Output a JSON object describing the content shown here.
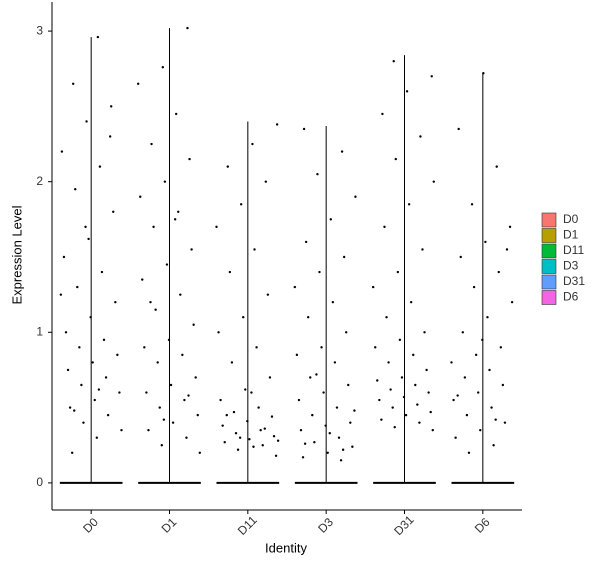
{
  "chart_data": {
    "type": "violin",
    "x_label": "Identity",
    "y_label": "Expression Level",
    "ylim": [
      -0.18,
      3.14
    ],
    "yticks": [
      0,
      1,
      2,
      3
    ],
    "series": [
      {
        "name": "D0",
        "color": "#F8766D",
        "max": 2.96,
        "values": [
          0,
          2.96,
          2.65,
          2.5,
          2.4,
          2.2,
          2.1,
          1.95,
          1.8,
          1.62,
          1.5,
          1.4,
          1.3,
          1.2,
          1.1,
          1.0,
          0.95,
          0.9,
          0.85,
          0.8,
          0.75,
          0.7,
          0.65,
          0.6,
          0.55,
          0.5,
          0.45,
          0.4,
          0.35,
          0.3,
          0.2,
          2.3,
          1.7,
          1.25,
          0.62,
          0.48
        ]
      },
      {
        "name": "D1",
        "color": "#B79F00",
        "max": 3.02,
        "values": [
          0,
          3.02,
          2.76,
          2.65,
          2.45,
          2.25,
          2.15,
          2.0,
          1.9,
          1.8,
          1.7,
          1.55,
          1.45,
          1.35,
          1.25,
          1.15,
          1.05,
          0.95,
          0.9,
          0.85,
          0.8,
          0.7,
          0.65,
          0.6,
          0.55,
          0.5,
          0.45,
          0.4,
          0.35,
          0.3,
          0.25,
          0.2,
          1.75,
          1.2,
          0.58,
          0.42
        ]
      },
      {
        "name": "D11",
        "color": "#00BA38",
        "max": 2.4,
        "values": [
          0,
          2.38,
          2.25,
          2.1,
          2.0,
          1.85,
          1.7,
          1.55,
          1.4,
          1.25,
          1.1,
          1.0,
          0.9,
          0.8,
          0.7,
          0.62,
          0.55,
          0.5,
          0.47,
          0.44,
          0.41,
          0.38,
          0.35,
          0.33,
          0.31,
          0.29,
          0.27,
          0.25,
          0.22,
          0.18,
          0.6,
          0.45,
          0.36,
          0.3,
          0.28,
          0.24
        ]
      },
      {
        "name": "D3",
        "color": "#00BFC4",
        "max": 2.37,
        "values": [
          0,
          2.35,
          2.2,
          2.05,
          1.9,
          1.75,
          1.6,
          1.5,
          1.4,
          1.3,
          1.2,
          1.1,
          1.0,
          0.9,
          0.85,
          0.8,
          0.7,
          0.65,
          0.6,
          0.55,
          0.5,
          0.45,
          0.4,
          0.38,
          0.35,
          0.3,
          0.27,
          0.24,
          0.2,
          0.17,
          0.15,
          0.72,
          0.48,
          0.33,
          0.26,
          0.22
        ]
      },
      {
        "name": "D31",
        "color": "#619CFF",
        "max": 2.84,
        "values": [
          0,
          2.8,
          2.7,
          2.6,
          2.45,
          2.3,
          2.15,
          2.0,
          1.85,
          1.7,
          1.55,
          1.4,
          1.3,
          1.2,
          1.1,
          1.0,
          0.95,
          0.9,
          0.85,
          0.8,
          0.75,
          0.7,
          0.68,
          0.65,
          0.62,
          0.6,
          0.57,
          0.55,
          0.52,
          0.5,
          0.47,
          0.45,
          0.42,
          0.4,
          0.37,
          0.35
        ]
      },
      {
        "name": "D6",
        "color": "#F564E3",
        "max": 2.72,
        "values": [
          0,
          2.72,
          2.35,
          2.1,
          1.85,
          1.7,
          1.6,
          1.5,
          1.4,
          1.3,
          1.2,
          1.1,
          1.0,
          0.9,
          0.85,
          0.8,
          0.75,
          0.7,
          0.65,
          0.6,
          0.55,
          0.5,
          0.45,
          0.4,
          0.35,
          0.3,
          0.25,
          0.2,
          1.55,
          0.95,
          0.58,
          0.42
        ]
      }
    ]
  }
}
